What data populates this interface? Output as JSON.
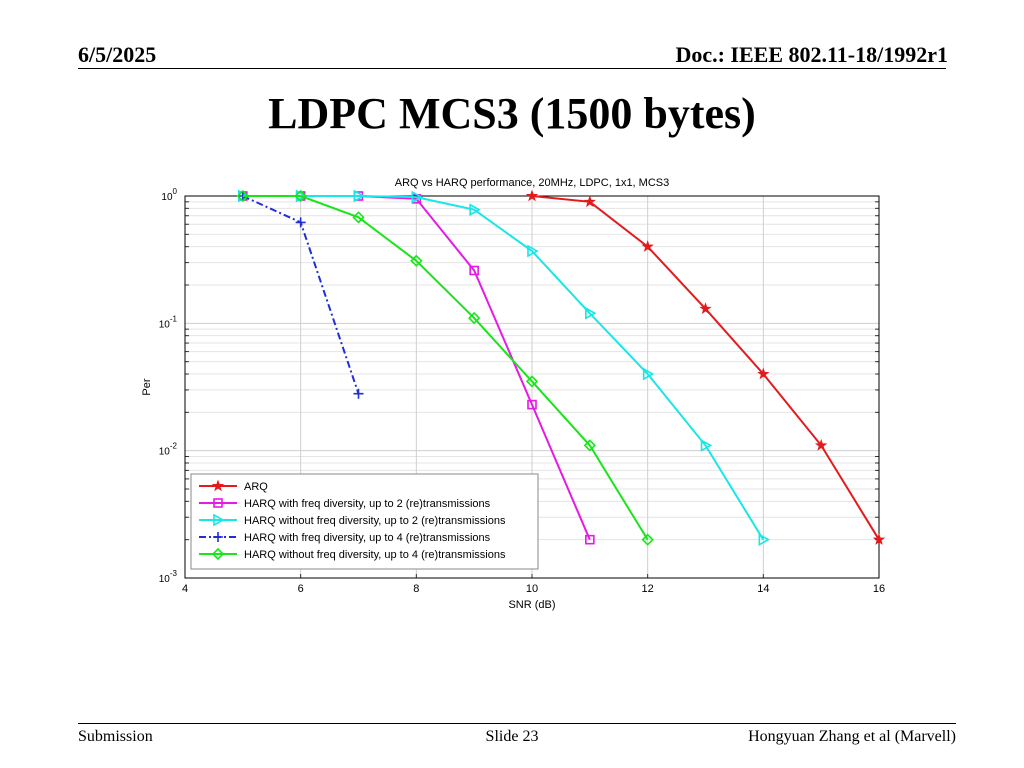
{
  "header": {
    "date": "6/5/2025",
    "doc": "Doc.: IEEE 802.11-18/1992r1"
  },
  "title": "LDPC MCS3 (1500 bytes)",
  "footer": {
    "left": "Submission",
    "center": "Slide 23",
    "right": "Hongyuan Zhang et al (Marvell)"
  },
  "chart_data": {
    "type": "line",
    "title": "ARQ vs HARQ performance, 20MHz, LDPC, 1x1, MCS3",
    "xlabel": "SNR (dB)",
    "ylabel": "Per",
    "xlim": [
      4,
      16
    ],
    "ylim": [
      0.001,
      1
    ],
    "yscale": "log",
    "grid": true,
    "legend_position": "bottom-left",
    "x_ticks": [
      "4",
      "6",
      "8",
      "10",
      "12",
      "14",
      "16"
    ],
    "y_ticks": [
      {
        "base": "10",
        "exp": "0",
        "value": 1
      },
      {
        "base": "10",
        "exp": "-1",
        "value": 0.1
      },
      {
        "base": "10",
        "exp": "-2",
        "value": 0.01
      },
      {
        "base": "10",
        "exp": "-3",
        "value": 0.001
      }
    ],
    "series": [
      {
        "name": "ARQ",
        "color": "#e41a1c",
        "marker": "star",
        "dash": "",
        "x": [
          10,
          11,
          12,
          13,
          14,
          15,
          16
        ],
        "y": [
          1.0,
          0.9,
          0.4,
          0.13,
          0.04,
          0.011,
          0.002
        ]
      },
      {
        "name": "HARQ with freq diversity, up to 2 (re)transmissions",
        "color": "#e619e6",
        "marker": "square",
        "dash": "",
        "x": [
          5,
          6,
          7,
          8,
          9,
          10,
          11
        ],
        "y": [
          1.0,
          1.0,
          1.0,
          0.95,
          0.26,
          0.023,
          0.002
        ]
      },
      {
        "name": "HARQ without freq diversity, up to 2 (re)transmissions",
        "color": "#19e6e6",
        "marker": "triangle-right",
        "dash": "",
        "x": [
          5,
          6,
          7,
          8,
          9,
          10,
          11,
          12,
          13,
          14
        ],
        "y": [
          1.0,
          1.0,
          1.0,
          0.98,
          0.78,
          0.37,
          0.12,
          0.04,
          0.011,
          0.002
        ]
      },
      {
        "name": "HARQ with freq diversity, up to 4 (re)transmissions",
        "color": "#1f2fd6",
        "marker": "plus",
        "dash": "7,3,2,3",
        "x": [
          5,
          6,
          7
        ],
        "y": [
          1.0,
          0.62,
          0.028
        ]
      },
      {
        "name": "HARQ without freq diversity, up to 4 (re)transmissions",
        "color": "#19e619",
        "marker": "diamond",
        "dash": "",
        "x": [
          5,
          6,
          7,
          8,
          9,
          10,
          11,
          12
        ],
        "y": [
          1.0,
          1.0,
          0.68,
          0.31,
          0.11,
          0.035,
          0.011,
          0.002
        ]
      }
    ]
  }
}
